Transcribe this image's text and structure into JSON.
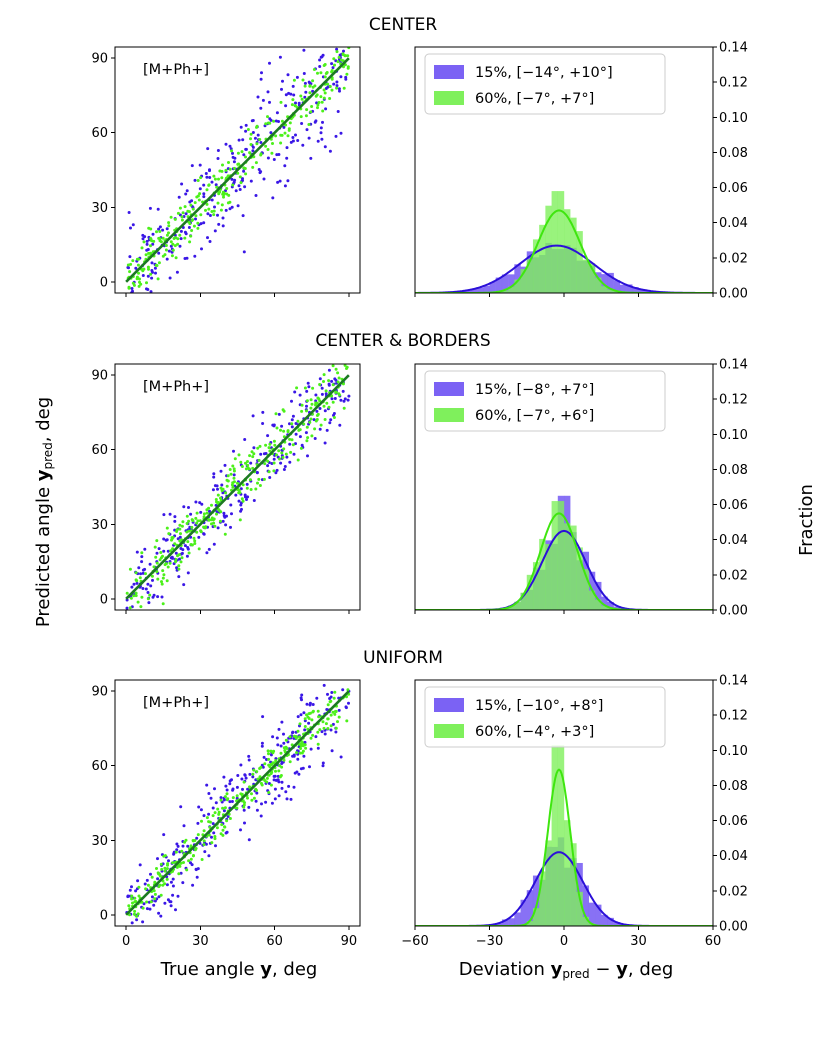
{
  "figure": {
    "ylabel_left": "Predicted angle y_pred, deg",
    "ylabel_right": "Fraction",
    "xlabel_scatter": "True angle y, deg",
    "xlabel_hist": "Deviation y_pred − y, deg"
  },
  "colors": {
    "low": "#3a17e6",
    "high": "#4cf01a",
    "fit_line": "#1c7a22",
    "hist_low": "#7b62f4",
    "hist_high": "#7ff05c"
  },
  "chart_data": [
    {
      "type": "scatter",
      "row_title": "CENTER",
      "annotation": "[M+Ph+]",
      "xlim": [
        0,
        90
      ],
      "ylim": [
        0,
        90
      ],
      "xticks": [
        0,
        30,
        60,
        90
      ],
      "yticks": [
        0,
        30,
        60,
        90
      ],
      "identity_line": [
        [
          0,
          0
        ],
        [
          90,
          90
        ]
      ],
      "series": [
        {
          "name": "15%",
          "color": "#3a17e6",
          "spread_deg": 10
        },
        {
          "name": "60%",
          "color": "#4cf01a",
          "spread_deg": 5
        }
      ]
    },
    {
      "type": "bar",
      "subtype": "histogram",
      "xlim": [
        -60,
        60
      ],
      "ylim": [
        0,
        0.14
      ],
      "xticks": [
        -60,
        -30,
        0,
        30,
        60
      ],
      "yticks": [
        0.0,
        0.02,
        0.04,
        0.06,
        0.08,
        0.1,
        0.12,
        0.14
      ],
      "legend_position": "top-left",
      "series": [
        {
          "name": "15%, [−14°, +10°]",
          "color": "#7b62f4",
          "mean": -3,
          "sigma": 15,
          "peak": 0.027,
          "hist_peak": 0.025
        },
        {
          "name": "60%, [−7°, +7°]",
          "color": "#7ff05c",
          "mean": -2,
          "sigma": 8.5,
          "peak": 0.047,
          "hist_peak": 0.058
        }
      ]
    },
    {
      "type": "scatter",
      "row_title": "CENTER & BORDERS",
      "annotation": "[M+Ph+]",
      "xlim": [
        0,
        90
      ],
      "ylim": [
        0,
        90
      ],
      "xticks": [
        0,
        30,
        60,
        90
      ],
      "yticks": [
        0,
        30,
        60,
        90
      ],
      "identity_line": [
        [
          0,
          0
        ],
        [
          90,
          90
        ]
      ],
      "series": [
        {
          "name": "15%",
          "color": "#3a17e6",
          "spread_deg": 7.5
        },
        {
          "name": "60%",
          "color": "#4cf01a",
          "spread_deg": 6
        }
      ]
    },
    {
      "type": "bar",
      "subtype": "histogram",
      "xlim": [
        -60,
        60
      ],
      "ylim": [
        0,
        0.14
      ],
      "xticks": [
        -60,
        -30,
        0,
        30,
        60
      ],
      "yticks": [
        0.0,
        0.02,
        0.04,
        0.06,
        0.08,
        0.1,
        0.12,
        0.14
      ],
      "legend_position": "top-left",
      "series": [
        {
          "name": "15%, [−8°, +7°]",
          "color": "#7b62f4",
          "mean": 0,
          "sigma": 8.8,
          "peak": 0.045,
          "hist_peak": 0.065
        },
        {
          "name": "60%, [−7°, +6°]",
          "color": "#7ff05c",
          "mean": -2,
          "sigma": 7.5,
          "peak": 0.055,
          "hist_peak": 0.062
        }
      ]
    },
    {
      "type": "scatter",
      "row_title": "UNIFORM",
      "annotation": "[M+Ph+]",
      "xlim": [
        0,
        90
      ],
      "ylim": [
        0,
        90
      ],
      "xticks": [
        0,
        30,
        60,
        90
      ],
      "yticks": [
        0,
        30,
        60,
        90
      ],
      "identity_line": [
        [
          0,
          0
        ],
        [
          90,
          90
        ]
      ],
      "series": [
        {
          "name": "15%",
          "color": "#3a17e6",
          "spread_deg": 8
        },
        {
          "name": "60%",
          "color": "#4cf01a",
          "spread_deg": 3.5
        }
      ]
    },
    {
      "type": "bar",
      "subtype": "histogram",
      "xlim": [
        -60,
        60
      ],
      "ylim": [
        0,
        0.14
      ],
      "xticks": [
        -60,
        -30,
        0,
        30,
        60
      ],
      "yticks": [
        0.0,
        0.02,
        0.04,
        0.06,
        0.08,
        0.1,
        0.12,
        0.14
      ],
      "legend_position": "top-left",
      "series": [
        {
          "name": "15%, [−10°, +8°]",
          "color": "#7b62f4",
          "mean": -2,
          "sigma": 9.5,
          "peak": 0.042,
          "hist_peak": 0.045
        },
        {
          "name": "60%, [−4°, +3°]",
          "color": "#7ff05c",
          "mean": -2,
          "sigma": 4.5,
          "peak": 0.089,
          "hist_peak": 0.103
        }
      ]
    }
  ]
}
